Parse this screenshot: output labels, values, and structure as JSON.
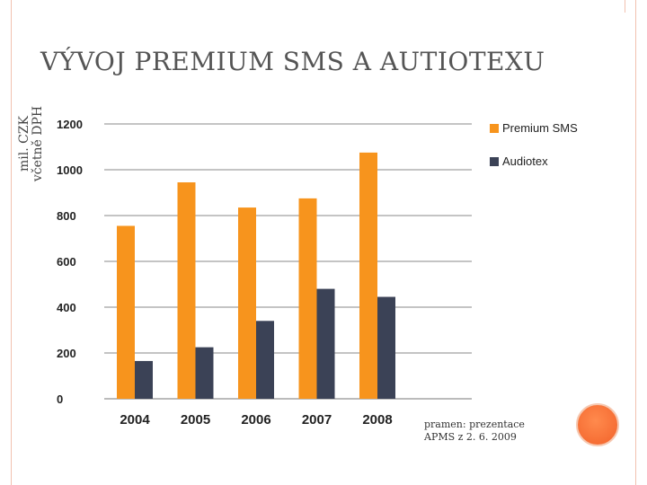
{
  "slide": {
    "title": "VÝVOJ PREMIUM SMS A AUTIOTEXU",
    "ylabel_line1": "mil. CZK",
    "ylabel_line2": "včetně DPH",
    "source_line1": "pramen: prezentace",
    "source_line2": "APMS z 2. 6. 2009"
  },
  "chart_data": {
    "type": "bar",
    "title": "",
    "xlabel": "",
    "ylabel": "mil. CZK včetně DPH",
    "categories": [
      "2004",
      "2005",
      "2006",
      "2007",
      "2008"
    ],
    "ylim": [
      0,
      1200
    ],
    "yticks": [
      0,
      200,
      400,
      600,
      800,
      1000,
      1200
    ],
    "grid": true,
    "legend": "right",
    "series": [
      {
        "name": "Premium SMS",
        "color": "#f7941d",
        "values": [
          755,
          945,
          835,
          875,
          1075
        ]
      },
      {
        "name": "Audiotex",
        "color": "#3b4256",
        "values": [
          165,
          225,
          340,
          480,
          445
        ]
      }
    ]
  }
}
